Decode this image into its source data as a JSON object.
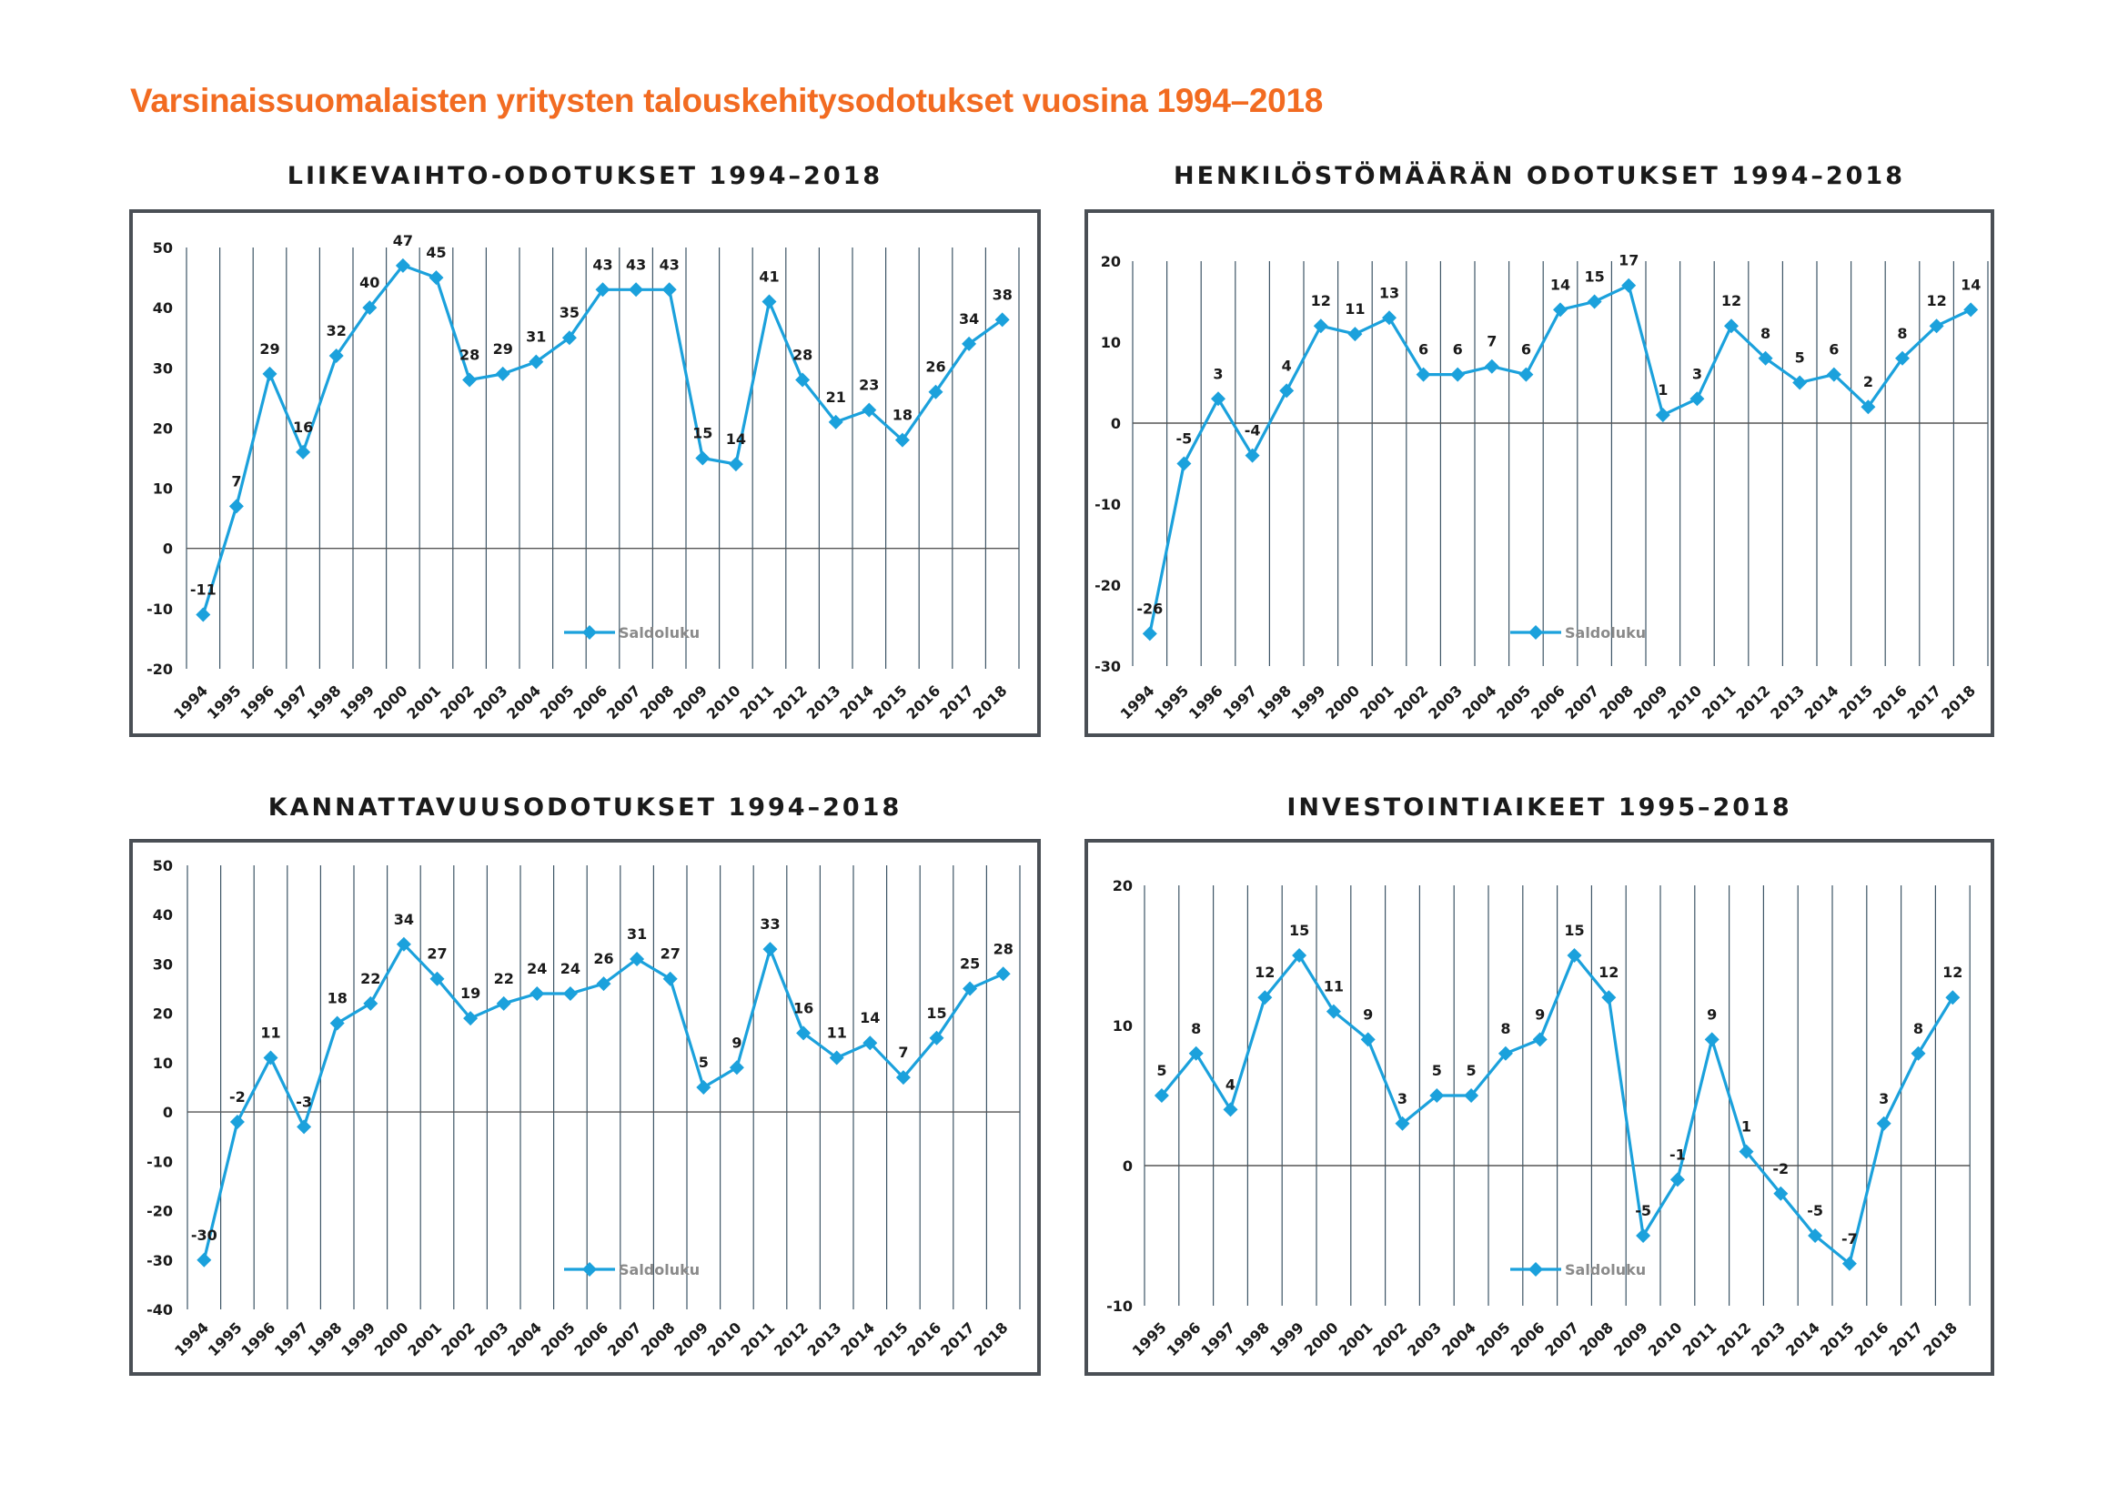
{
  "page_title": "Varsinaissuomalaisten yritysten talouskehitysodotukset vuosina 1994–2018",
  "colors": {
    "title": "#f26b21",
    "series": "#1ba1dc",
    "gridline": "#3d5566",
    "zero_line": "#555555",
    "frame": "#4a4f55"
  },
  "chart_data": [
    {
      "id": "liikevaihto",
      "type": "line",
      "title": "LIIKEVAIHTO-ODOTUKSET 1994–2018",
      "xlabel": "",
      "ylabel": "",
      "ylim": [
        -20,
        50
      ],
      "yticks": [
        50,
        40,
        30,
        20,
        10,
        0,
        -10,
        -20
      ],
      "grid": "vertical",
      "legend": "bottom-center",
      "categories": [
        "1994",
        "1995",
        "1996",
        "1997",
        "1998",
        "1999",
        "2000",
        "2001",
        "2002",
        "2003",
        "2004",
        "2005",
        "2006",
        "2007",
        "2008",
        "2009",
        "2010",
        "2011",
        "2012",
        "2013",
        "2014",
        "2015",
        "2016",
        "2017",
        "2018"
      ],
      "series": [
        {
          "name": "Saldoluku",
          "values": [
            -11,
            7,
            29,
            16,
            32,
            40,
            47,
            45,
            28,
            29,
            31,
            35,
            43,
            43,
            43,
            15,
            14,
            41,
            28,
            21,
            23,
            18,
            26,
            34,
            38
          ]
        }
      ]
    },
    {
      "id": "henkilosto",
      "type": "line",
      "title": "HENKILÖSTÖMÄÄRÄN ODOTUKSET 1994–2018",
      "xlabel": "",
      "ylabel": "",
      "ylim": [
        -30,
        20
      ],
      "yticks": [
        20,
        10,
        0,
        -10,
        -20,
        -30
      ],
      "grid": "vertical",
      "legend": "bottom-center",
      "categories": [
        "1994",
        "1995",
        "1996",
        "1997",
        "1998",
        "1999",
        "2000",
        "2001",
        "2002",
        "2003",
        "2004",
        "2005",
        "2006",
        "2007",
        "2008",
        "2009",
        "2010",
        "2011",
        "2012",
        "2013",
        "2014",
        "2015",
        "2016",
        "2017",
        "2018"
      ],
      "series": [
        {
          "name": "Saldoluku",
          "values": [
            -26,
            -5,
            3,
            -4,
            4,
            12,
            11,
            13,
            6,
            6,
            7,
            6,
            14,
            15,
            17,
            1,
            3,
            12,
            8,
            5,
            6,
            2,
            8,
            12,
            14
          ]
        }
      ]
    },
    {
      "id": "kannattavuus",
      "type": "line",
      "title": "KANNATTAVUUSODOTUKSET 1994–2018",
      "xlabel": "",
      "ylabel": "",
      "ylim": [
        -40,
        50
      ],
      "yticks": [
        50,
        40,
        30,
        20,
        10,
        0,
        -10,
        -20,
        -30,
        -40
      ],
      "grid": "vertical",
      "legend": "bottom-center",
      "categories": [
        "1994",
        "1995",
        "1996",
        "1997",
        "1998",
        "1999",
        "2000",
        "2001",
        "2002",
        "2003",
        "2004",
        "2005",
        "2006",
        "2007",
        "2008",
        "2009",
        "2010",
        "2011",
        "2012",
        "2013",
        "2014",
        "2015",
        "2016",
        "2017",
        "2018"
      ],
      "series": [
        {
          "name": "Saldoluku",
          "values": [
            -30,
            -2,
            11,
            -3,
            18,
            22,
            34,
            27,
            19,
            22,
            24,
            24,
            26,
            31,
            27,
            5,
            9,
            33,
            16,
            11,
            14,
            7,
            15,
            25,
            28
          ]
        }
      ]
    },
    {
      "id": "investointi",
      "type": "line",
      "title": "INVESTOINTIAIKEET 1995–2018",
      "xlabel": "",
      "ylabel": "",
      "ylim": [
        -10,
        20
      ],
      "yticks": [
        20,
        10,
        0,
        -10
      ],
      "grid": "vertical",
      "legend": "bottom-center",
      "categories": [
        "1995",
        "1996",
        "1997",
        "1998",
        "1999",
        "2000",
        "2001",
        "2002",
        "2003",
        "2004",
        "2005",
        "2006",
        "2007",
        "2008",
        "2009",
        "2010",
        "2011",
        "2012",
        "2013",
        "2014",
        "2015",
        "2016",
        "2017",
        "2018"
      ],
      "series": [
        {
          "name": "Saldoluku",
          "values": [
            5,
            8,
            4,
            12,
            15,
            11,
            9,
            3,
            5,
            5,
            8,
            9,
            15,
            12,
            -5,
            -1,
            9,
            1,
            -2,
            -5,
            -7,
            3,
            8,
            12
          ]
        }
      ]
    }
  ]
}
